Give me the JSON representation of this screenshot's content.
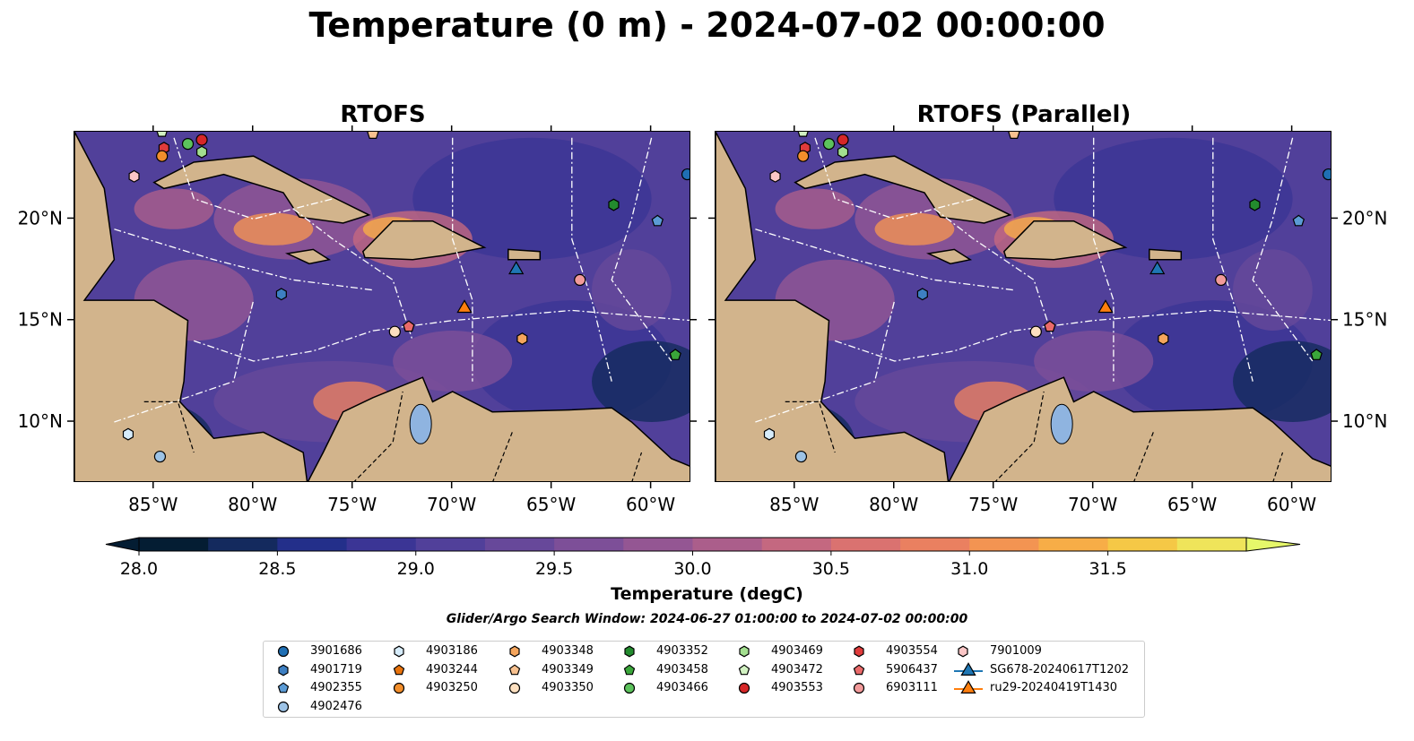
{
  "figure": {
    "title": "Temperature (0 m) - 2024-07-02 00:00:00",
    "search_window": "Glider/Argo Search Window: 2024-06-27 01:00:00 to 2024-07-02 00:00:00"
  },
  "chart_data": [
    {
      "type": "heatmap",
      "title": "RTOFS",
      "xlim": [
        -89,
        -58
      ],
      "ylim": [
        7,
        24.3
      ],
      "xticks": [
        "85°W",
        "80°W",
        "75°W",
        "70°W",
        "65°W",
        "60°W"
      ],
      "xtick_values": [
        -85,
        -80,
        -75,
        -70,
        -65,
        -60
      ],
      "yticks": [
        "10°N",
        "15°N",
        "20°N"
      ],
      "ytick_values": [
        10,
        15,
        20
      ],
      "ytick_side": "left"
    },
    {
      "type": "heatmap",
      "title": "RTOFS (Parallel)",
      "xlim": [
        -89,
        -58
      ],
      "ylim": [
        7,
        24.3
      ],
      "xticks": [
        "85°W",
        "80°W",
        "75°W",
        "70°W",
        "65°W",
        "60°W"
      ],
      "xtick_values": [
        -85,
        -80,
        -75,
        -70,
        -65,
        -60
      ],
      "yticks": [
        "10°N",
        "15°N",
        "20°N"
      ],
      "ytick_values": [
        10,
        15,
        20
      ],
      "ytick_side": "right"
    }
  ],
  "colorbar": {
    "label": "Temperature (degC)",
    "min": 28.0,
    "max": 31.5,
    "step": 0.25,
    "ticks": [
      "28.0",
      "28.5",
      "29.0",
      "29.5",
      "30.0",
      "30.5",
      "31.0",
      "31.5"
    ],
    "colors": [
      "#041d33",
      "#142a5e",
      "#232f8a",
      "#3b3595",
      "#51409a",
      "#67489a",
      "#7d4f98",
      "#945693",
      "#ab5e8b",
      "#c46880",
      "#da7270",
      "#ea8060",
      "#f39452",
      "#f7ad47",
      "#f5c846",
      "#efe45a"
    ],
    "extend_low": "#041d33",
    "extend_high": "#e6f76a"
  },
  "land_color": "#d2b48c",
  "legend": {
    "columns": [
      [
        {
          "label": "3901686",
          "marker": "circle",
          "color": "#1f6fb4"
        },
        {
          "label": "4901719",
          "marker": "hexagon",
          "color": "#3d7fc2"
        },
        {
          "label": "4902355",
          "marker": "pentagon",
          "color": "#5b9bd5"
        },
        {
          "label": "4902476",
          "marker": "circle",
          "color": "#9dc3e6"
        }
      ],
      [
        {
          "label": "4903186",
          "marker": "hexagon",
          "color": "#d6ecfb"
        },
        {
          "label": "4903244",
          "marker": "pentagon",
          "color": "#e8730c"
        },
        {
          "label": "4903250",
          "marker": "circle",
          "color": "#f28e2b"
        }
      ],
      [
        {
          "label": "4903348",
          "marker": "hexagon",
          "color": "#f5a55c"
        },
        {
          "label": "4903349",
          "marker": "pentagon",
          "color": "#f8c18f"
        },
        {
          "label": "4903350",
          "marker": "circle",
          "color": "#fde0c0"
        }
      ],
      [
        {
          "label": "4903352",
          "marker": "hexagon",
          "color": "#238b2e"
        },
        {
          "label": "4903458",
          "marker": "pentagon",
          "color": "#3aa63a"
        },
        {
          "label": "4903466",
          "marker": "circle",
          "color": "#5cc25c"
        }
      ],
      [
        {
          "label": "4903469",
          "marker": "hexagon",
          "color": "#a3df8f"
        },
        {
          "label": "4903472",
          "marker": "pentagon",
          "color": "#d2f2c2"
        },
        {
          "label": "4903553",
          "marker": "circle",
          "color": "#d62728"
        }
      ],
      [
        {
          "label": "4903554",
          "marker": "hexagon",
          "color": "#e03b3b"
        },
        {
          "label": "5906437",
          "marker": "pentagon",
          "color": "#ea6a6a"
        },
        {
          "label": "6903111",
          "marker": "circle",
          "color": "#f29a9a"
        }
      ],
      [
        {
          "label": "7901009",
          "marker": "hexagon",
          "color": "#fbc6c6"
        },
        {
          "label": "SG678-20240617T1202",
          "marker": "triangle-line",
          "color": "#1f77b4"
        },
        {
          "label": "ru29-20240419T1430",
          "marker": "triangle-line",
          "color": "#ff7f0e"
        }
      ]
    ]
  },
  "floats": [
    {
      "id": "3901686",
      "lon": -58.2,
      "lat": 22.2
    },
    {
      "id": "4902355",
      "lon": -59.7,
      "lat": 19.9
    },
    {
      "id": "4903352",
      "lon": -61.9,
      "lat": 20.7
    },
    {
      "id": "6903111",
      "lon": -63.6,
      "lat": 17.0
    },
    {
      "id": "4903348",
      "lon": -66.5,
      "lat": 14.1
    },
    {
      "id": "5906437",
      "lon": -72.2,
      "lat": 14.7
    },
    {
      "id": "4903350",
      "lon": -72.9,
      "lat": 14.45
    },
    {
      "id": "4901719",
      "lon": -78.6,
      "lat": 16.3
    },
    {
      "id": "7901009",
      "lon": -86.0,
      "lat": 22.1
    },
    {
      "id": "4903554",
      "lon": -84.5,
      "lat": 23.5
    },
    {
      "id": "4903250",
      "lon": -84.6,
      "lat": 23.1
    },
    {
      "id": "4903466",
      "lon": -83.3,
      "lat": 23.7
    },
    {
      "id": "4903553",
      "lon": -82.6,
      "lat": 23.9
    },
    {
      "id": "4903469",
      "lon": -82.6,
      "lat": 23.3
    },
    {
      "id": "4903472",
      "lon": -84.6,
      "lat": 24.3
    },
    {
      "id": "4903349",
      "lon": -74.0,
      "lat": 24.2
    },
    {
      "id": "4903458",
      "lon": -58.8,
      "lat": 13.3
    },
    {
      "id": "4903186",
      "lon": -86.3,
      "lat": 9.4
    },
    {
      "id": "4902476",
      "lon": -84.7,
      "lat": 8.3
    }
  ],
  "gliders": [
    {
      "id": "SG678-20240617T1202",
      "lon": -66.8,
      "lat": 17.5
    },
    {
      "id": "ru29-20240419T1430",
      "lon": -69.4,
      "lat": 15.6
    }
  ]
}
